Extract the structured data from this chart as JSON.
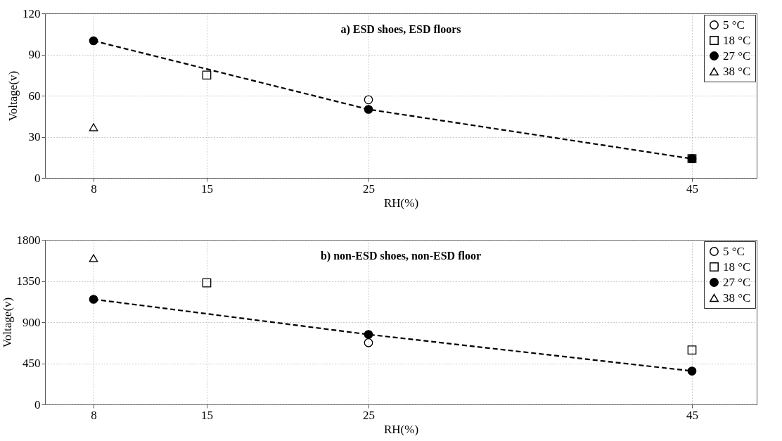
{
  "chart_data": [
    {
      "type": "scatter",
      "title": "a) ESD shoes, ESD floors",
      "xlabel": "RH(%)",
      "ylabel": "Voltage(v)",
      "xlim": [
        5,
        49
      ],
      "xticks": [
        8,
        15,
        25,
        45
      ],
      "ylim": [
        0,
        120
      ],
      "yticks": [
        0,
        30,
        60,
        90,
        120
      ],
      "grid": true,
      "legend": "top right",
      "series": [
        {
          "name": "5 °C",
          "type": "scatter",
          "marker": "circle",
          "color": "#000000",
          "x": [
            25
          ],
          "values": [
            57
          ]
        },
        {
          "name": "18 °C",
          "type": "scatter",
          "marker": "square",
          "color": "#000000",
          "x": [
            15,
            45
          ],
          "values": [
            75,
            14
          ]
        },
        {
          "name": "27 °C",
          "type": "line",
          "marker": "circle",
          "line_style": "dashed",
          "color": "#000000",
          "x": [
            8,
            25,
            45
          ],
          "values": [
            100,
            50,
            14
          ]
        },
        {
          "name": "38 °C",
          "type": "scatter",
          "marker": "triangle",
          "color": "#000000",
          "x": [
            8
          ],
          "values": [
            37
          ]
        }
      ]
    },
    {
      "type": "scatter",
      "title": "b) non-ESD shoes, non-ESD floor",
      "xlabel": "RH(%)",
      "ylabel": "Voltage(v)",
      "xlim": [
        5,
        49
      ],
      "xticks": [
        8,
        15,
        25,
        45
      ],
      "ylim": [
        0,
        1800
      ],
      "yticks": [
        0,
        450,
        900,
        1350,
        1800
      ],
      "grid": true,
      "legend": "top right",
      "series": [
        {
          "name": "5 °C",
          "type": "scatter",
          "marker": "circle",
          "color": "#000000",
          "x": [
            25
          ],
          "values": [
            675
          ]
        },
        {
          "name": "18 °C",
          "type": "scatter",
          "marker": "square",
          "color": "#000000",
          "x": [
            15,
            45
          ],
          "values": [
            1330,
            595
          ]
        },
        {
          "name": "27 °C",
          "type": "line",
          "marker": "circle",
          "line_style": "dashed",
          "color": "#000000",
          "x": [
            8,
            25,
            45
          ],
          "values": [
            1150,
            765,
            365
          ]
        },
        {
          "name": "38 °C",
          "type": "scatter",
          "marker": "triangle",
          "color": "#000000",
          "x": [
            8
          ],
          "values": [
            1600
          ]
        }
      ]
    }
  ]
}
